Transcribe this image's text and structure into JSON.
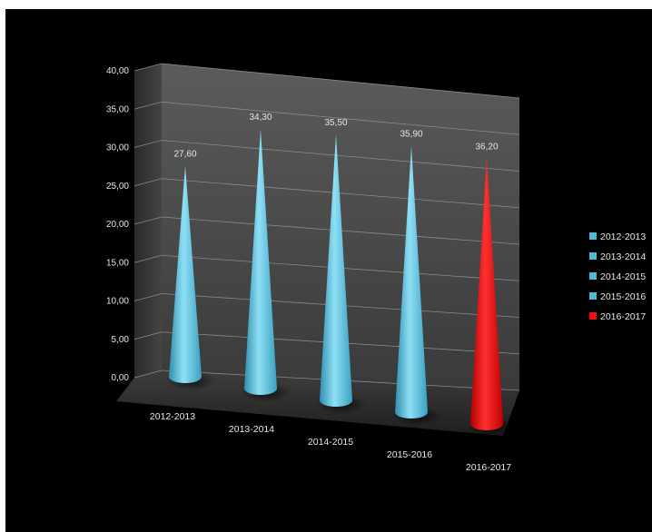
{
  "chart_data": {
    "type": "bar",
    "shape": "3d-cone",
    "title": "",
    "xlabel": "",
    "ylabel": "",
    "categories": [
      "2012-2013",
      "2013-2014",
      "2014-2015",
      "2015-2016",
      "2016-2017"
    ],
    "values": [
      27.6,
      34.3,
      35.5,
      35.9,
      36.2
    ],
    "value_labels": [
      "27,60",
      "34,30",
      "35,50",
      "35,90",
      "36,20"
    ],
    "ylim": [
      0,
      40
    ],
    "yticks": [
      "0,00",
      "5,00",
      "10,00",
      "15,00",
      "20,00",
      "25,00",
      "30,00",
      "35,00",
      "40,00"
    ],
    "grid": true,
    "legend_position": "right",
    "legend": [
      {
        "label": "2012-2013",
        "color": "#4fb9d6"
      },
      {
        "label": "2013-2014",
        "color": "#4fb9d6"
      },
      {
        "label": "2014-2015",
        "color": "#4fb9d6"
      },
      {
        "label": "2015-2016",
        "color": "#4fb9d6"
      },
      {
        "label": "2016-2017",
        "color": "#ee1111"
      }
    ],
    "colors": [
      "#4fb9d6",
      "#4fb9d6",
      "#4fb9d6",
      "#4fb9d6",
      "#ee1111"
    ],
    "background": "#000000"
  }
}
